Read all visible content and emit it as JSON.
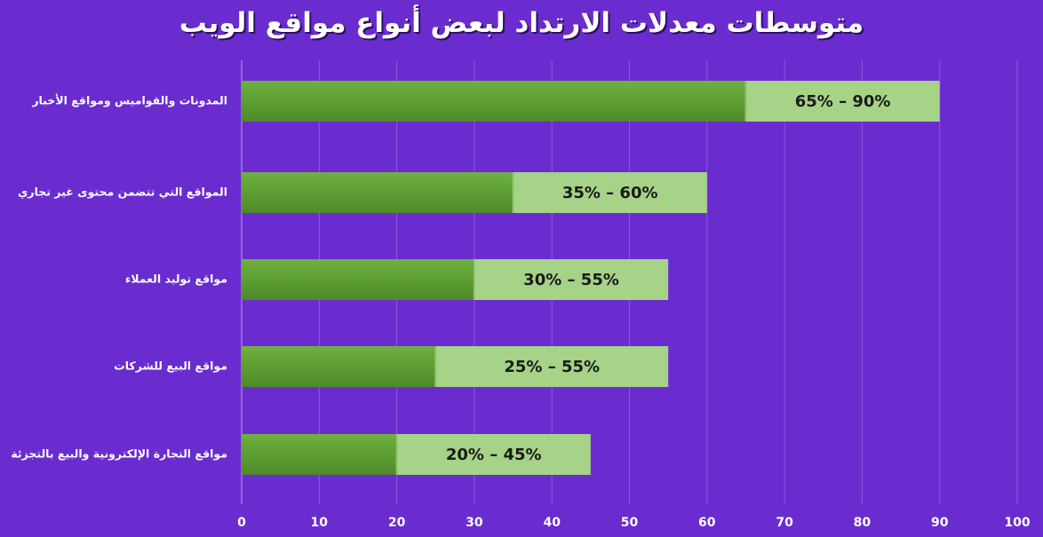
{
  "chart_data": {
    "type": "bar",
    "orientation": "horizontal",
    "stacked": true,
    "title": "متوسطات معدلات الارتداد لبعض أنواع مواقع الويب",
    "categories": [
      "المدونات والقواميس ومواقع الأخبار",
      "المواقع التي تتضمن محتوى غير تجاري",
      "مواقع توليد العملاء",
      "مواقع البيع للشركات",
      "مواقع التجارة الإلكترونية والبيع بالتجزئة"
    ],
    "ranges": [
      {
        "low": 65,
        "high": 90,
        "label": "65% – 90%"
      },
      {
        "low": 35,
        "high": 60,
        "label": "35% – 60%"
      },
      {
        "low": 30,
        "high": 55,
        "label": "30% – 55%"
      },
      {
        "low": 25,
        "high": 55,
        "label": "25% – 55%"
      },
      {
        "low": 20,
        "high": 45,
        "label": "20% – 45%"
      }
    ],
    "xlim": [
      0,
      100
    ],
    "xticks": [
      "0",
      "10",
      "20",
      "30",
      "40",
      "50",
      "60",
      "70",
      "80",
      "90",
      "100"
    ],
    "grid": true,
    "colors": {
      "background": "#6a2ccf",
      "low_segment": "#5f9f35",
      "high_segment": "#a6d387",
      "gridline": "#8a5ad8",
      "text": "#ffffff",
      "range_text": "#1a1a1a"
    }
  }
}
